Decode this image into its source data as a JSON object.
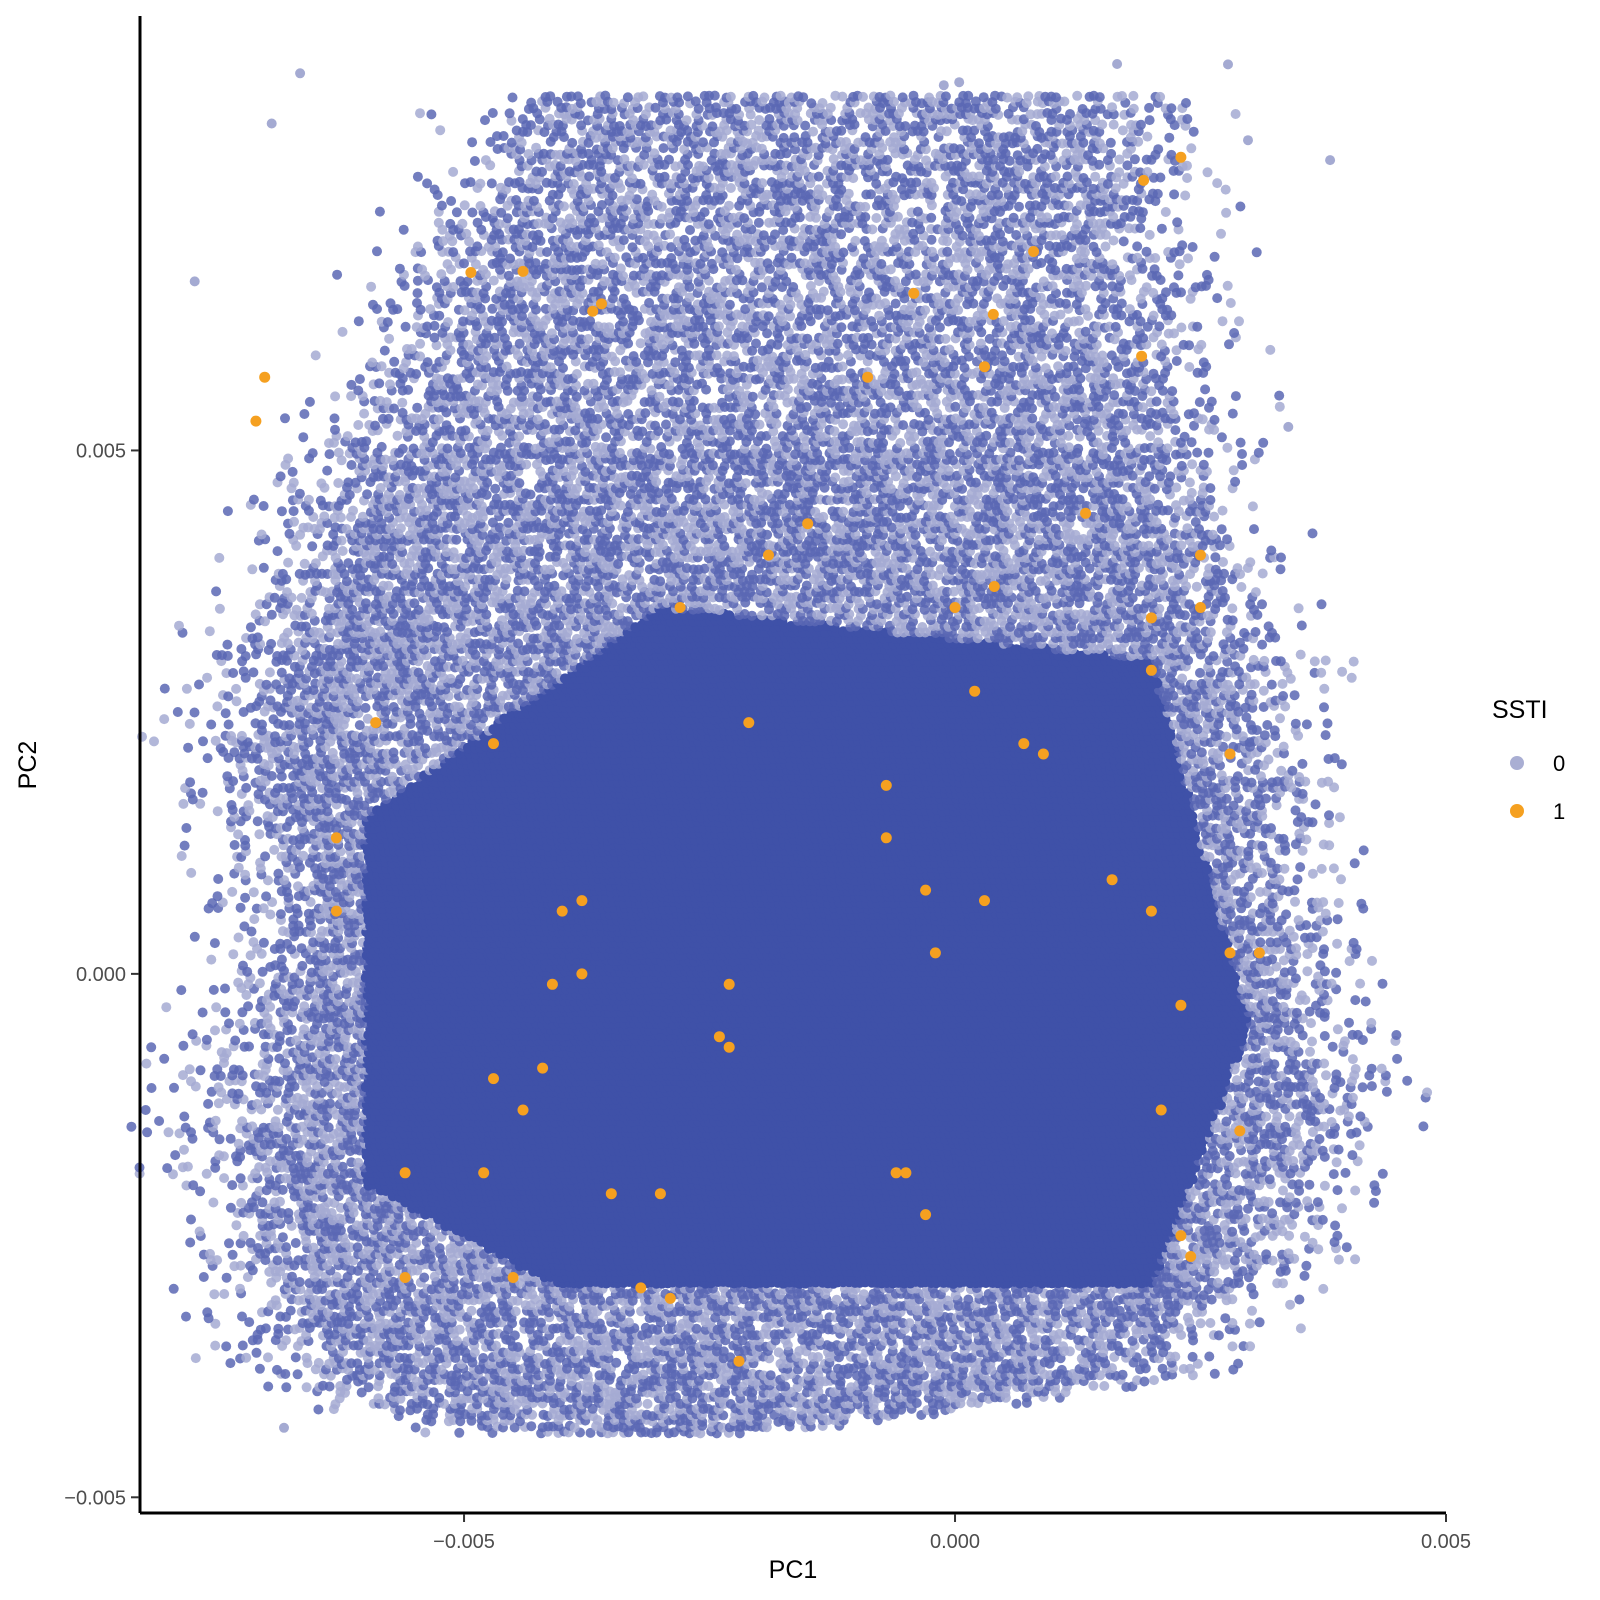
{
  "chart_data": {
    "type": "scatter",
    "title": "",
    "xlabel": "PC1",
    "ylabel": "PC2",
    "xlim": [
      -0.0083,
      0.005
    ],
    "ylim": [
      -0.00515,
      0.00915
    ],
    "x_ticks": [
      -0.005,
      0.0,
      0.005
    ],
    "x_tick_labels": [
      "−0.005",
      "0.000",
      "0.005"
    ],
    "y_ticks": [
      -0.005,
      0.0,
      0.005
    ],
    "y_tick_labels": [
      "−0.005",
      "0.000",
      "0.005"
    ],
    "grid": false,
    "legend": {
      "title": "SSTI",
      "position": "right",
      "entries": [
        {
          "label": "0",
          "color": "#3F51A8"
        },
        {
          "label": "1",
          "color": "#F5A020"
        }
      ]
    },
    "series": [
      {
        "name": "0",
        "color": "#3F51A8",
        "description": "dense cloud of roughly 100k points filling the region below",
        "region": {
          "left": [
            [
              -0.0045,
              0.0084
            ],
            [
              -0.0063,
              0.0049
            ],
            [
              -0.0074,
              0.0024
            ],
            [
              -0.007,
              0.0004
            ],
            [
              -0.0075,
              -0.0015
            ],
            [
              -0.0069,
              -0.0038
            ],
            [
              -0.006,
              -0.0041
            ],
            [
              -0.0048,
              -0.0044
            ]
          ],
          "right": [
            [
              -0.002,
              0.0088
            ],
            [
              0.002,
              0.0086
            ],
            [
              0.0025,
              0.0049
            ],
            [
              0.0032,
              0.0029
            ],
            [
              0.0036,
              0.0004
            ],
            [
              0.004,
              -0.0015
            ],
            [
              0.0033,
              -0.0028
            ],
            [
              0.0022,
              -0.0038
            ],
            [
              0.0005,
              -0.0041
            ],
            [
              -0.001,
              -0.0043
            ],
            [
              -0.0025,
              -0.0044
            ]
          ]
        },
        "dense_core": [
          -0.006,
          0.0015,
          -0.003,
          0.0035,
          0.002,
          0.003,
          0.003,
          -0.0005,
          0.002,
          -0.003,
          -0.004,
          -0.003,
          -0.006,
          -0.002
        ]
      },
      {
        "name": "1",
        "color": "#F5A020",
        "points": [
          [
            -0.00703,
            0.0057
          ],
          [
            -0.00712,
            0.00528
          ],
          [
            -0.00493,
            0.0067
          ],
          [
            -0.0044,
            0.00671
          ],
          [
            -0.0036,
            0.0064
          ],
          [
            -0.00369,
            0.00633
          ],
          [
            0.00192,
            0.00758
          ],
          [
            0.0023,
            0.0078
          ],
          [
            0.0008,
            0.0069
          ],
          [
            -0.00042,
            0.0065
          ],
          [
            0.00039,
            0.0063
          ],
          [
            0.0003,
            0.0058
          ],
          [
            -0.00089,
            0.0057
          ],
          [
            0.0019,
            0.0059
          ],
          [
            -0.0015,
            0.0043
          ],
          [
            -0.0019,
            0.004
          ],
          [
            -0.0028,
            0.0035
          ],
          [
            0.0,
            0.0035
          ],
          [
            0.0004,
            0.0037
          ],
          [
            0.00133,
            0.0044
          ],
          [
            0.0025,
            0.004
          ],
          [
            0.0025,
            0.0035
          ],
          [
            0.002,
            0.0029
          ],
          [
            0.002,
            0.0034
          ],
          [
            0.0002,
            0.0027
          ],
          [
            -0.0021,
            0.0024
          ],
          [
            -0.0059,
            0.0024
          ],
          [
            -0.0047,
            0.0022
          ],
          [
            0.0007,
            0.0022
          ],
          [
            0.0009,
            0.0021
          ],
          [
            0.0028,
            0.0021
          ],
          [
            -0.0007,
            0.0018
          ],
          [
            -0.0063,
            0.0013
          ],
          [
            -0.0007,
            0.0013
          ],
          [
            -0.0063,
            0.0006
          ],
          [
            -0.0038,
            0.0007
          ],
          [
            -0.004,
            0.0006
          ],
          [
            -0.0003,
            0.0008
          ],
          [
            0.0003,
            0.0007
          ],
          [
            0.0016,
            0.0009
          ],
          [
            0.002,
            0.0006
          ],
          [
            -0.0002,
            0.0002
          ],
          [
            0.0028,
            0.0002
          ],
          [
            0.0031,
            0.0002
          ],
          [
            -0.0041,
            -0.0001
          ],
          [
            -0.0038,
            0.0
          ],
          [
            -0.0023,
            -0.0001
          ],
          [
            0.0023,
            -0.0003
          ],
          [
            -0.0024,
            -0.0006
          ],
          [
            -0.0047,
            -0.001
          ],
          [
            -0.0042,
            -0.0009
          ],
          [
            -0.0044,
            -0.0013
          ],
          [
            -0.0048,
            -0.0019
          ],
          [
            -0.0056,
            -0.0019
          ],
          [
            -0.0035,
            -0.0021
          ],
          [
            -0.0006,
            -0.0019
          ],
          [
            -0.0005,
            -0.0019
          ],
          [
            -0.003,
            -0.0021
          ],
          [
            0.0021,
            -0.0013
          ],
          [
            0.0029,
            -0.0015
          ],
          [
            -0.0029,
            -0.0031
          ],
          [
            -0.0056,
            -0.0029
          ],
          [
            -0.0045,
            -0.0029
          ],
          [
            -0.0032,
            -0.003
          ],
          [
            -0.0022,
            -0.0037
          ],
          [
            0.0023,
            -0.0025
          ],
          [
            0.0024,
            -0.0027
          ],
          [
            -0.0003,
            -0.0023
          ],
          [
            -0.0023,
            -0.0007
          ]
        ]
      }
    ]
  }
}
